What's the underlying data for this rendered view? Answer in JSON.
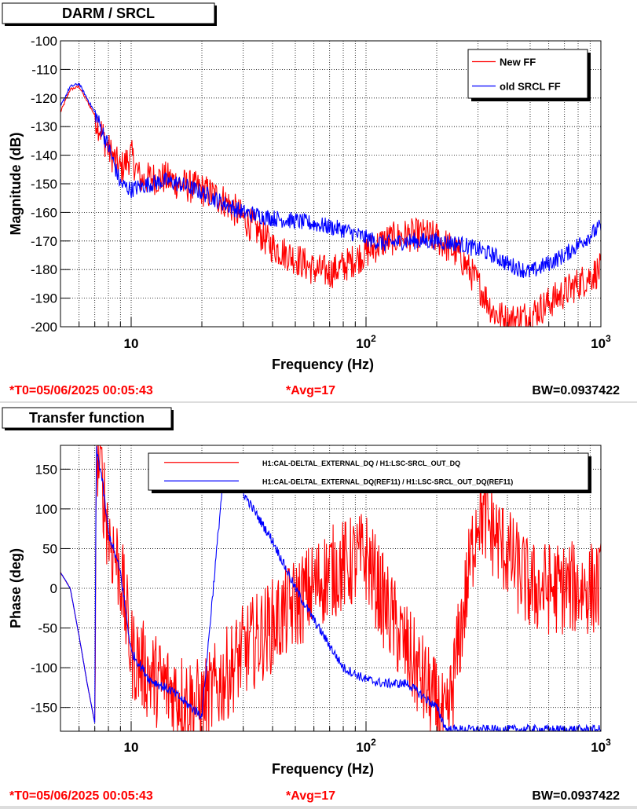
{
  "panels": [
    {
      "title": "DARM / SRCL",
      "footer": {
        "t0": "*T0=05/06/2025 00:05:43",
        "avg": "*Avg=17",
        "bw": "BW=0.0937422"
      }
    },
    {
      "title": "Transfer function",
      "footer": {
        "t0": "*T0=05/06/2025 00:05:43",
        "avg": "*Avg=17",
        "bw": "BW=0.0937422"
      }
    }
  ],
  "colors": {
    "red": "#ff0000",
    "blue": "#0000ff",
    "footer_text": "#ff0000"
  },
  "chart_data": [
    {
      "type": "line",
      "xlabel": "Frequency (Hz)",
      "ylabel": "Magnitude (dB)",
      "x_scale": "log",
      "xlim": [
        5,
        1000
      ],
      "ylim": [
        -200,
        -100
      ],
      "x_tick_labels": [
        "10",
        "10^2",
        "10^3"
      ],
      "y_ticks": [
        -100,
        -110,
        -120,
        -130,
        -140,
        -150,
        -160,
        -170,
        -180,
        -190,
        -200
      ],
      "grid": true,
      "legend_position": "top-right",
      "series": [
        {
          "name": "New FF",
          "color": "#ff0000",
          "noise": 6,
          "x": [
            5,
            5.5,
            6,
            7,
            8,
            9,
            10,
            11,
            12,
            14,
            16,
            20,
            25,
            30,
            35,
            40,
            50,
            60,
            70,
            80,
            100,
            120,
            150,
            180,
            200,
            250,
            300,
            350,
            400,
            500,
            700,
            1000
          ],
          "y": [
            -125,
            -117,
            -116,
            -126,
            -138,
            -145,
            -140,
            -149,
            -148,
            -148,
            -150,
            -152,
            -156,
            -162,
            -167,
            -172,
            -176,
            -180,
            -181,
            -179,
            -174,
            -170,
            -168,
            -168,
            -169,
            -175,
            -185,
            -195,
            -198,
            -196,
            -188,
            -180
          ]
        },
        {
          "name": "old SRCL FF",
          "color": "#0000ff",
          "noise": 3,
          "x": [
            5,
            5.5,
            6,
            7,
            8,
            9,
            10,
            12,
            14,
            16,
            20,
            25,
            30,
            40,
            50,
            60,
            80,
            100,
            120,
            150,
            200,
            250,
            300,
            350,
            400,
            500,
            700,
            1000
          ],
          "y": [
            -123,
            -116,
            -115,
            -125,
            -137,
            -150,
            -152,
            -150,
            -149,
            -150,
            -153,
            -157,
            -160,
            -162,
            -163,
            -164,
            -166,
            -169,
            -171,
            -170,
            -170,
            -171,
            -173,
            -175,
            -178,
            -181,
            -175,
            -165
          ]
        }
      ]
    },
    {
      "type": "line",
      "xlabel": "Frequency (Hz)",
      "ylabel": "Phase (deg)",
      "x_scale": "log",
      "xlim": [
        5,
        1000
      ],
      "ylim": [
        -180,
        180
      ],
      "x_tick_labels": [
        "10",
        "10^2",
        "10^3"
      ],
      "y_ticks": [
        150,
        100,
        50,
        0,
        -50,
        -100,
        -150
      ],
      "grid": true,
      "legend_position": "top-right",
      "series": [
        {
          "name": "H1:CAL-DELTAL_EXTERNAL_DQ / H1:LSC-SRCL_OUT_DQ",
          "color": "#ff0000",
          "noise": 60,
          "x": [
            5,
            5.5,
            6,
            6.5,
            7,
            7.1,
            7.5,
            8,
            9,
            10,
            12,
            15,
            20,
            30,
            50,
            70,
            100,
            120,
            150,
            200,
            220,
            300,
            500,
            1000
          ],
          "y": [
            20,
            0,
            -60,
            -120,
            -170,
            175,
            140,
            70,
            20,
            -80,
            -110,
            -130,
            -150,
            -80,
            -20,
            20,
            40,
            -20,
            -80,
            -150,
            -178,
            100,
            0,
            0
          ]
        },
        {
          "name": "H1:CAL-DELTAL_EXTERNAL_DQ(REF11) / H1:LSC-SRCL_OUT_DQ(REF11)",
          "color": "#0000ff",
          "noise": 6,
          "x": [
            5,
            5.5,
            6,
            6.5,
            7,
            7.1,
            7.5,
            8,
            9,
            10,
            12,
            15,
            18,
            20,
            25,
            30,
            40,
            50,
            60,
            80,
            100,
            120,
            150,
            200,
            220
          ],
          "y": [
            20,
            0,
            -60,
            -120,
            -170,
            175,
            140,
            70,
            20,
            -80,
            -115,
            -130,
            -150,
            -160,
            160,
            120,
            60,
            0,
            -40,
            -100,
            -115,
            -120,
            -120,
            -150,
            -178
          ]
        }
      ]
    }
  ]
}
